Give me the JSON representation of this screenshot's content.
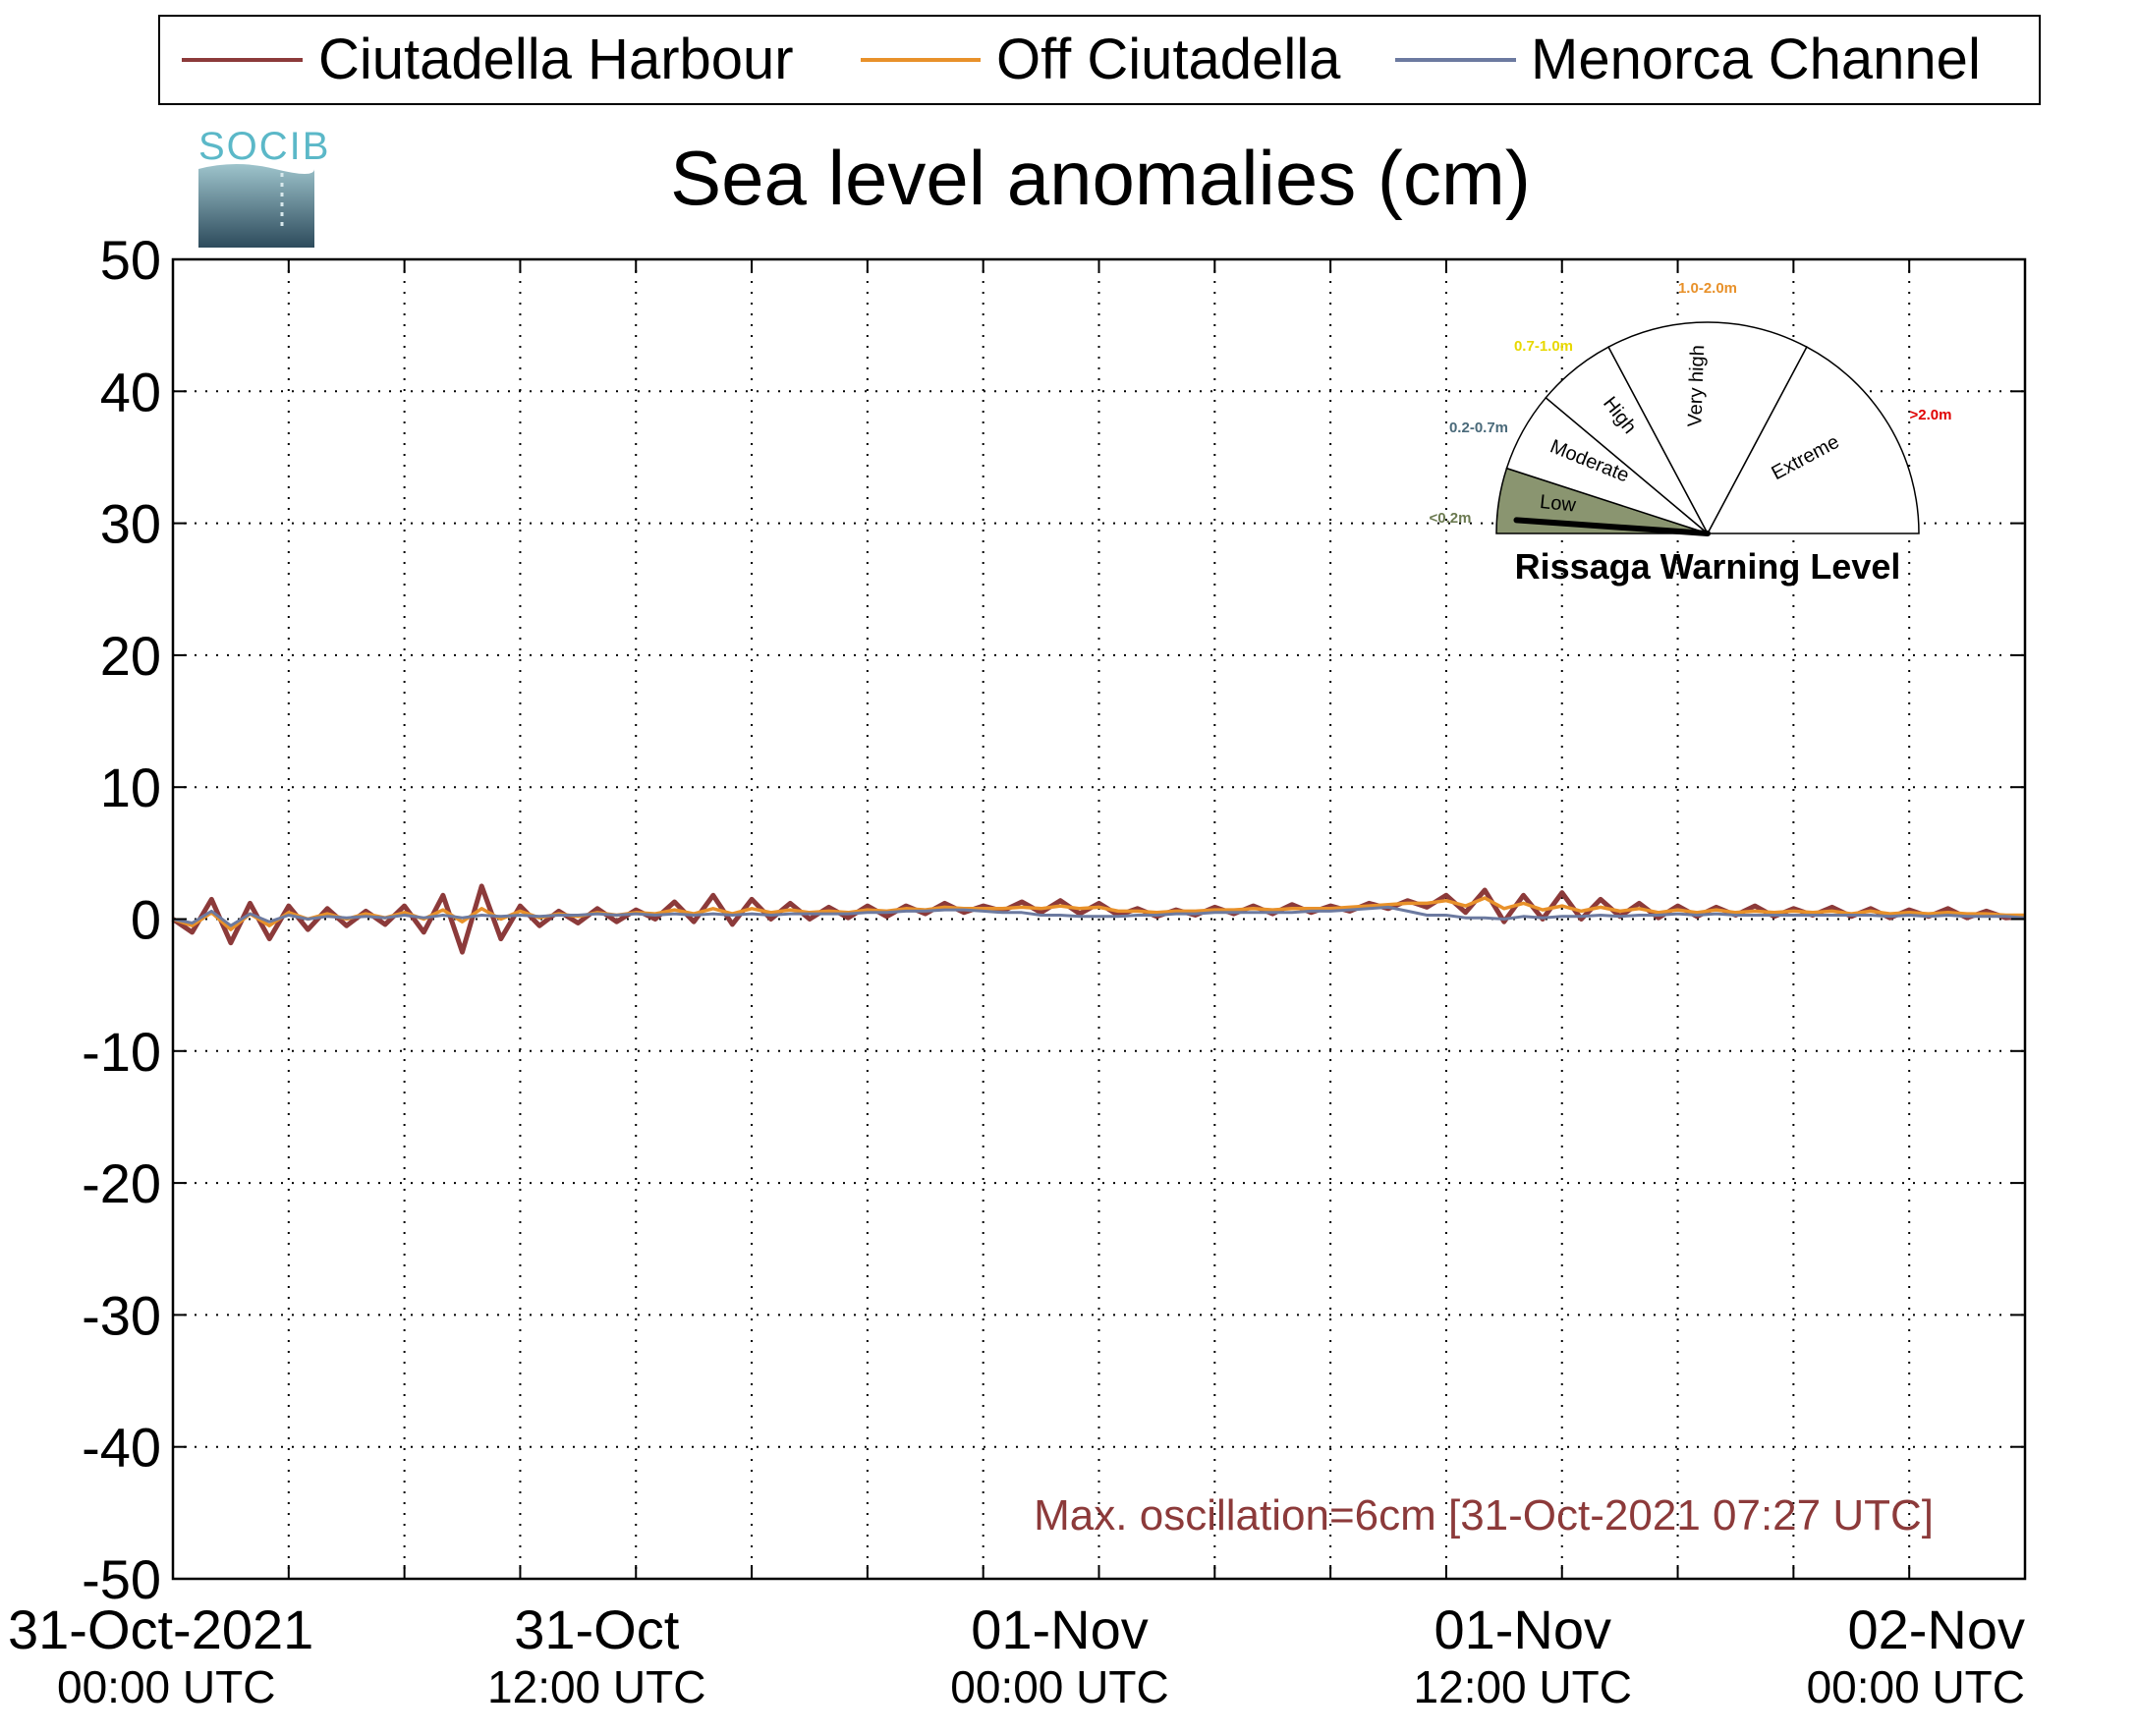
{
  "logo": {
    "text": "SOCIB"
  },
  "legend": {
    "entries": [
      {
        "label": "Ciutadella Harbour",
        "color": "#8c3a3a"
      },
      {
        "label": "Off Ciutadella",
        "color": "#e8912a"
      },
      {
        "label": "Menorca Channel",
        "color": "#6c7aa0"
      }
    ]
  },
  "chart_data": {
    "type": "line",
    "title": "Sea level anomalies (cm)",
    "xlabel": "",
    "ylabel": "",
    "ylim": [
      -50,
      50
    ],
    "xlim_hours": [
      0,
      48
    ],
    "yticks": [
      50,
      40,
      30,
      20,
      10,
      0,
      -10,
      -20,
      -30,
      -40,
      -50
    ],
    "xticks": [
      {
        "hour": 0,
        "date": "31-Oct-2021",
        "time": "00:00 UTC"
      },
      {
        "hour": 12,
        "date": "31-Oct",
        "time": "12:00 UTC"
      },
      {
        "hour": 24,
        "date": "01-Nov",
        "time": "00:00 UTC"
      },
      {
        "hour": 36,
        "date": "01-Nov",
        "time": "12:00 UTC"
      },
      {
        "hour": 48,
        "date": "02-Nov",
        "time": "00:00 UTC"
      }
    ],
    "grid": true,
    "legend_position": "top",
    "series": [
      {
        "name": "Ciutadella Harbour",
        "color": "#8c3a3a",
        "x": [
          0,
          0.5,
          1,
          1.5,
          2,
          2.5,
          3,
          3.5,
          4,
          4.5,
          5,
          5.5,
          6,
          6.5,
          7,
          7.5,
          8,
          8.5,
          9,
          9.5,
          10,
          10.5,
          11,
          11.5,
          12,
          12.5,
          13,
          13.5,
          14,
          14.5,
          15,
          15.5,
          16,
          16.5,
          17,
          17.5,
          18,
          18.5,
          19,
          19.5,
          20,
          20.5,
          21,
          21.5,
          22,
          22.5,
          23,
          23.5,
          24,
          24.5,
          25,
          25.5,
          26,
          26.5,
          27,
          27.5,
          28,
          28.5,
          29,
          29.5,
          30,
          30.5,
          31,
          31.5,
          32,
          32.5,
          33,
          33.5,
          34,
          34.5,
          35,
          35.5,
          36,
          36.5,
          37,
          37.5,
          38,
          38.5,
          39,
          39.5,
          40,
          40.5,
          41,
          41.5,
          42,
          42.5,
          43,
          43.5,
          44,
          44.5,
          45,
          45.5,
          46,
          46.5,
          47,
          47.5,
          48
        ],
        "y": [
          0,
          -1,
          1.5,
          -1.8,
          1.2,
          -1.5,
          1,
          -0.8,
          0.8,
          -0.5,
          0.6,
          -0.4,
          1,
          -1,
          1.8,
          -2.5,
          2.5,
          -1.5,
          1,
          -0.5,
          0.6,
          -0.3,
          0.8,
          -0.2,
          0.7,
          0,
          1.3,
          -0.2,
          1.8,
          -0.4,
          1.5,
          0,
          1.2,
          0,
          0.9,
          0.1,
          1,
          0.2,
          1,
          0.4,
          1.2,
          0.5,
          1,
          0.6,
          1.3,
          0.5,
          1.4,
          0.4,
          1.2,
          0.3,
          0.8,
          0.2,
          0.7,
          0.3,
          0.9,
          0.4,
          1,
          0.4,
          1.1,
          0.5,
          1,
          0.6,
          1.2,
          0.8,
          1.4,
          0.9,
          1.8,
          0.5,
          2.2,
          -0.2,
          1.8,
          0,
          2,
          0,
          1.5,
          0.2,
          1.2,
          0.1,
          1,
          0.2,
          0.9,
          0.3,
          1,
          0.2,
          0.8,
          0.3,
          0.9,
          0.2,
          0.8,
          0.1,
          0.7,
          0.2,
          0.8,
          0.1,
          0.6,
          0.1,
          0.2
        ]
      },
      {
        "name": "Off Ciutadella",
        "color": "#e8912a",
        "x": [
          0,
          0.5,
          1,
          1.5,
          2,
          2.5,
          3,
          3.5,
          4,
          4.5,
          5,
          5.5,
          6,
          6.5,
          7,
          7.5,
          8,
          8.5,
          9,
          9.5,
          10,
          10.5,
          11,
          11.5,
          12,
          12.5,
          13,
          13.5,
          14,
          14.5,
          15,
          15.5,
          16,
          16.5,
          17,
          17.5,
          18,
          18.5,
          19,
          19.5,
          20,
          20.5,
          21,
          21.5,
          22,
          22.5,
          23,
          23.5,
          24,
          24.5,
          25,
          25.5,
          26,
          26.5,
          27,
          27.5,
          28,
          28.5,
          29,
          29.5,
          30,
          30.5,
          31,
          31.5,
          32,
          32.5,
          33,
          33.5,
          34,
          34.5,
          35,
          35.5,
          36,
          36.5,
          37,
          37.5,
          38,
          38.5,
          39,
          39.5,
          40,
          40.5,
          41,
          41.5,
          42,
          42.5,
          43,
          43.5,
          44,
          44.5,
          45,
          45.5,
          46,
          46.5,
          47,
          47.5,
          48
        ],
        "y": [
          0,
          -0.5,
          0.5,
          -0.8,
          0.4,
          -0.5,
          0.5,
          0,
          0.4,
          0,
          0.4,
          0.1,
          0.5,
          0,
          0.7,
          -0.2,
          0.8,
          0,
          0.6,
          0.1,
          0.4,
          0.2,
          0.5,
          0.3,
          0.5,
          0.4,
          0.7,
          0.4,
          0.8,
          0.4,
          0.8,
          0.5,
          0.7,
          0.5,
          0.6,
          0.5,
          0.7,
          0.6,
          0.8,
          0.7,
          0.9,
          0.8,
          0.8,
          0.8,
          0.9,
          0.8,
          1,
          0.8,
          0.9,
          0.6,
          0.6,
          0.5,
          0.6,
          0.6,
          0.7,
          0.7,
          0.8,
          0.7,
          0.8,
          0.8,
          0.8,
          0.9,
          1,
          1.1,
          1.2,
          1.2,
          1.4,
          1,
          1.6,
          0.8,
          1.2,
          0.7,
          1,
          0.6,
          0.9,
          0.6,
          0.8,
          0.5,
          0.7,
          0.5,
          0.7,
          0.5,
          0.6,
          0.5,
          0.6,
          0.5,
          0.6,
          0.4,
          0.6,
          0.4,
          0.5,
          0.4,
          0.5,
          0.4,
          0.4,
          0.3,
          0.3
        ]
      },
      {
        "name": "Menorca Channel",
        "color": "#6c7aa0",
        "x": [
          0,
          0.5,
          1,
          1.5,
          2,
          2.5,
          3,
          3.5,
          4,
          4.5,
          5,
          5.5,
          6,
          6.5,
          7,
          7.5,
          8,
          8.5,
          9,
          9.5,
          10,
          10.5,
          11,
          11.5,
          12,
          12.5,
          13,
          13.5,
          14,
          14.5,
          15,
          15.5,
          16,
          16.5,
          17,
          17.5,
          18,
          18.5,
          19,
          19.5,
          20,
          20.5,
          21,
          21.5,
          22,
          22.5,
          23,
          23.5,
          24,
          24.5,
          25,
          25.5,
          26,
          26.5,
          27,
          27.5,
          28,
          28.5,
          29,
          29.5,
          30,
          30.5,
          31,
          31.5,
          32,
          32.5,
          33,
          33.5,
          34,
          34.5,
          35,
          35.5,
          36,
          36.5,
          37,
          37.5,
          38,
          38.5,
          39,
          39.5,
          40,
          40.5,
          41,
          41.5,
          42,
          42.5,
          43,
          43.5,
          44,
          44.5,
          45,
          45.5,
          46,
          46.5,
          47,
          47.5,
          48
        ],
        "y": [
          0,
          -0.3,
          0.6,
          -0.5,
          0.4,
          -0.2,
          0.3,
          0,
          0.2,
          0.1,
          0.2,
          0.1,
          0.3,
          0.1,
          0.3,
          0.1,
          0.3,
          0.2,
          0.3,
          0.2,
          0.3,
          0.3,
          0.4,
          0.3,
          0.4,
          0.3,
          0.4,
          0.3,
          0.4,
          0.3,
          0.4,
          0.3,
          0.4,
          0.4,
          0.4,
          0.4,
          0.5,
          0.5,
          0.6,
          0.6,
          0.7,
          0.7,
          0.6,
          0.5,
          0.5,
          0.3,
          0.3,
          0.2,
          0.2,
          0.2,
          0.3,
          0.3,
          0.4,
          0.4,
          0.5,
          0.5,
          0.5,
          0.5,
          0.5,
          0.6,
          0.6,
          0.7,
          0.8,
          0.9,
          0.6,
          0.3,
          0.3,
          0.1,
          0.1,
          0,
          0.2,
          0.1,
          0.2,
          0.2,
          0.3,
          0.2,
          0.3,
          0.3,
          0.4,
          0.3,
          0.4,
          0.3,
          0.3,
          0.3,
          0.3,
          0.3,
          0.3,
          0.3,
          0.3,
          0.2,
          0.3,
          0.2,
          0.3,
          0.2,
          0.2,
          0.2,
          0.1
        ]
      }
    ]
  },
  "annotation": {
    "text": "Max. oscillation=6cm [31-Oct-2021 07:27 UTC]",
    "color": "#8c3a3a"
  },
  "gauge": {
    "title": "Rissaga Warning Level",
    "needle_value": "Low",
    "segments": [
      {
        "label": "Low",
        "range": "<0.2m",
        "range_color": "#6b7a50",
        "fill": "#8a9570"
      },
      {
        "label": "Moderate",
        "range": "0.2-0.7m",
        "range_color": "#4a6a7a",
        "fill": "#ffffff"
      },
      {
        "label": "High",
        "range": "0.7-1.0m",
        "range_color": "#e8d800",
        "fill": "#ffffff"
      },
      {
        "label": "Very high",
        "range": "1.0-2.0m",
        "range_color": "#e8912a",
        "fill": "#ffffff"
      },
      {
        "label": "Extreme",
        "range": ">2.0m",
        "range_color": "#e00000",
        "fill": "#ffffff"
      }
    ]
  }
}
